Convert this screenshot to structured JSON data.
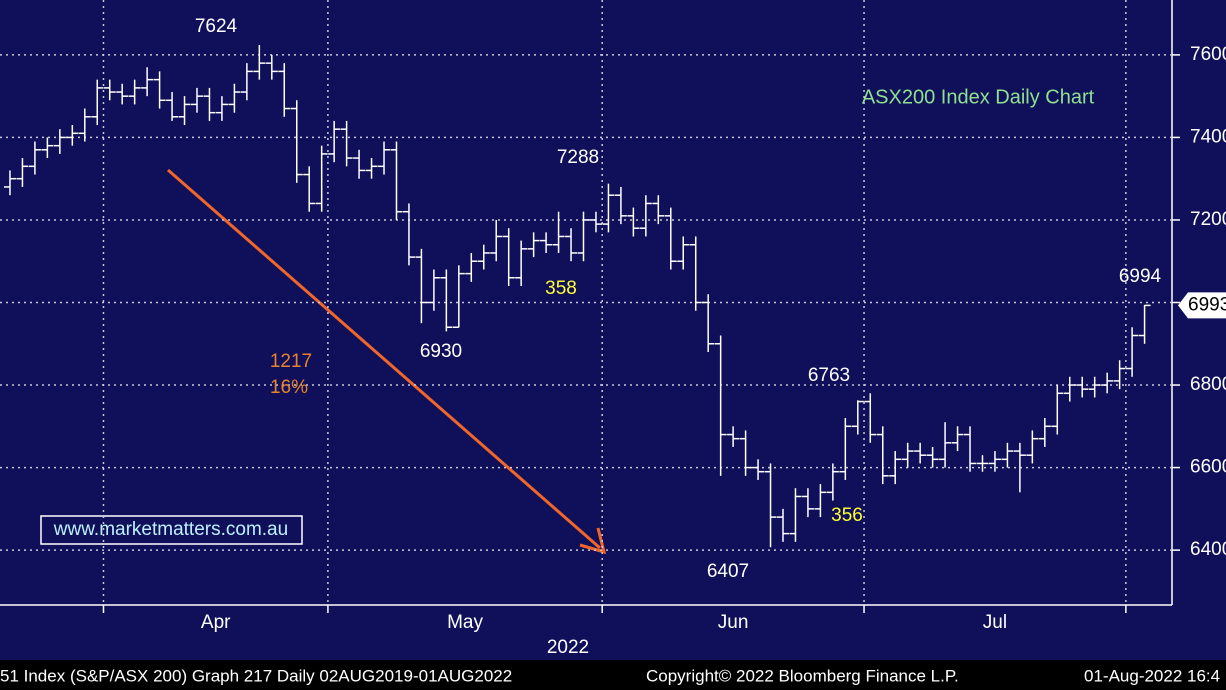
{
  "chart_data": {
    "type": "ohlc",
    "title": "ASX200 Index Daily Chart",
    "open": [
      7280,
      7300,
      7330,
      7370,
      7380,
      7400,
      7410,
      7450,
      7520,
      7510,
      7500,
      7520,
      7540,
      7490,
      7450,
      7480,
      7500,
      7460,
      7480,
      7510,
      7560,
      7580,
      7560,
      7470,
      7310,
      7240,
      7360,
      7420,
      7350,
      7320,
      7330,
      7370,
      7220,
      7110,
      7000,
      7060,
      6940,
      7070,
      7100,
      7120,
      7160,
      7060,
      7130,
      7150,
      7140,
      7160,
      7120,
      7200,
      7190,
      7260,
      7210,
      7180,
      7240,
      7210,
      7100,
      7140,
      7000,
      6900,
      6680,
      6670,
      6600,
      6590,
      6480,
      6440,
      6530,
      6500,
      6540,
      6590,
      6700,
      6760,
      6680,
      6580,
      6620,
      6640,
      6630,
      6620,
      6660,
      6680,
      6610,
      6610,
      6620,
      6640,
      6630,
      6670,
      6700,
      6780,
      6800,
      6790,
      6800,
      6810,
      6840,
      6920
    ],
    "high": [
      7320,
      7350,
      7390,
      7400,
      7420,
      7430,
      7470,
      7540,
      7540,
      7530,
      7540,
      7570,
      7560,
      7510,
      7500,
      7520,
      7520,
      7500,
      7530,
      7580,
      7624,
      7600,
      7580,
      7490,
      7330,
      7380,
      7440,
      7440,
      7370,
      7350,
      7390,
      7390,
      7240,
      7130,
      7080,
      7080,
      7090,
      7120,
      7140,
      7200,
      7180,
      7150,
      7170,
      7170,
      7220,
      7180,
      7220,
      7220,
      7288,
      7280,
      7230,
      7260,
      7260,
      7230,
      7160,
      7160,
      7020,
      6920,
      6700,
      6690,
      6620,
      6610,
      6500,
      6550,
      6550,
      6560,
      6610,
      6720,
      6763,
      6780,
      6700,
      6640,
      6660,
      6660,
      6650,
      6710,
      6700,
      6700,
      6630,
      6640,
      6660,
      6660,
      6690,
      6720,
      6800,
      6820,
      6820,
      6820,
      6830,
      6860,
      6940,
      6994
    ],
    "low": [
      7260,
      7280,
      7310,
      7350,
      7360,
      7380,
      7390,
      7430,
      7490,
      7480,
      7480,
      7500,
      7470,
      7440,
      7430,
      7460,
      7440,
      7440,
      7460,
      7490,
      7540,
      7540,
      7450,
      7290,
      7220,
      7220,
      7340,
      7330,
      7300,
      7300,
      7310,
      7200,
      7090,
      6950,
      6980,
      6930,
      6940,
      7050,
      7080,
      7100,
      7040,
      7040,
      7110,
      7120,
      7120,
      7100,
      7100,
      7170,
      7170,
      7190,
      7160,
      7160,
      7190,
      7080,
      7080,
      6980,
      6880,
      6580,
      6650,
      6580,
      6570,
      6407,
      6420,
      6420,
      6480,
      6480,
      6520,
      6570,
      6680,
      6660,
      6560,
      6560,
      6600,
      6610,
      6600,
      6600,
      6640,
      6590,
      6590,
      6590,
      6600,
      6540,
      6610,
      6650,
      6680,
      6760,
      6770,
      6770,
      6780,
      6790,
      6820,
      6900
    ],
    "close": [
      7300,
      7330,
      7370,
      7380,
      7400,
      7410,
      7450,
      7520,
      7510,
      7500,
      7520,
      7540,
      7490,
      7450,
      7480,
      7500,
      7460,
      7480,
      7510,
      7560,
      7580,
      7560,
      7470,
      7310,
      7240,
      7360,
      7420,
      7350,
      7320,
      7330,
      7370,
      7220,
      7110,
      7000,
      7060,
      6940,
      7070,
      7100,
      7120,
      7160,
      7060,
      7130,
      7150,
      7140,
      7160,
      7120,
      7200,
      7190,
      7260,
      7210,
      7180,
      7240,
      7210,
      7100,
      7140,
      7000,
      6900,
      6680,
      6670,
      6600,
      6590,
      6480,
      6440,
      6530,
      6500,
      6540,
      6590,
      6700,
      6760,
      6680,
      6580,
      6620,
      6640,
      6630,
      6620,
      6660,
      6680,
      6610,
      6610,
      6620,
      6640,
      6630,
      6670,
      6700,
      6780,
      6800,
      6790,
      6800,
      6810,
      6840,
      6920,
      6993
    ],
    "ylim": [
      6267,
      7733
    ],
    "yticks": [
      6400,
      6600,
      6800,
      7000,
      7200,
      7400,
      7600
    ],
    "xlim": [
      -0.8,
      93.2
    ],
    "xticks": [
      {
        "value": 7.5,
        "label": "Apr"
      },
      {
        "value": 25.5,
        "label": "May"
      },
      {
        "value": 47.5,
        "label": "Jun"
      },
      {
        "value": 68.5,
        "label": "Jul"
      },
      89.5
    ],
    "xlabel": "2022",
    "grid": true,
    "color": "#ffffff",
    "annotations": [
      "358",
      "356",
      "1217",
      "16%"
    ],
    "watermark": "www.marketmatters.com.au",
    "footer": [
      "51 Index (S&P/ASX 200) Graph 217  Daily 02AUG2019-01AUG2022",
      "Copyright© 2022 Bloomberg Finance L.P.",
      "01-Aug-2022 16:4"
    ]
  }
}
